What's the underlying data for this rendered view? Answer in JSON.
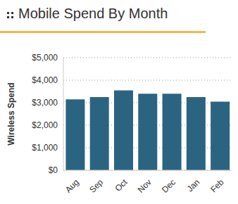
{
  "chart_data": {
    "type": "bar",
    "title": "Mobile Spend By Month",
    "y_label": "Wireless Spend",
    "categories": [
      "Aug",
      "Sep",
      "Oct",
      "Nov",
      "Dec",
      "Jan",
      "Feb"
    ],
    "values": [
      3150,
      3250,
      3550,
      3400,
      3400,
      3250,
      3050
    ],
    "color": "#2a6481",
    "ylim": [
      0,
      5000
    ],
    "yticks": [
      {
        "value": 0,
        "label": "$0"
      },
      {
        "value": 1000,
        "label": "$1,000"
      },
      {
        "value": 2000,
        "label": "$2,000"
      },
      {
        "value": 3000,
        "label": "$3,000"
      },
      {
        "value": 4000,
        "label": "$4,000"
      },
      {
        "value": 5000,
        "label": "$5,000"
      }
    ],
    "grid": true
  }
}
